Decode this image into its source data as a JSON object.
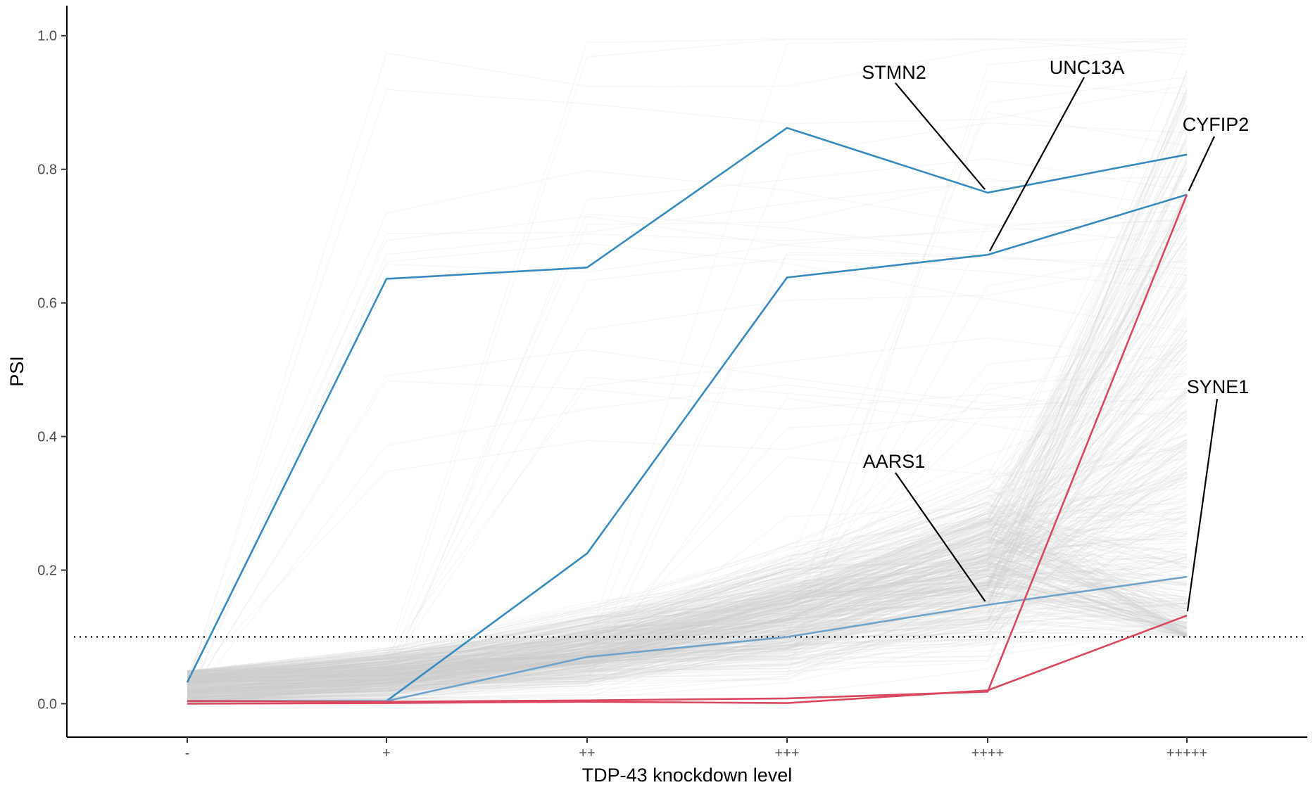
{
  "chart_data": {
    "type": "line",
    "title": "",
    "xlabel": "TDP-43 knockdown level",
    "ylabel": "PSI",
    "categories": [
      "-",
      "+",
      "++",
      "+++",
      "++++",
      "+++++"
    ],
    "y_ticks": [
      0.0,
      0.2,
      0.4,
      0.6,
      0.8,
      1.0
    ],
    "y_tick_labels": [
      "0.0",
      "0.2",
      "0.4",
      "0.6",
      "0.8",
      "1.0"
    ],
    "ylim": [
      -0.05,
      1.045
    ],
    "threshold": 0.1,
    "threshold_style": "dotted",
    "grid": false,
    "legend": "none",
    "background_colors": {
      "line": "#cccccc",
      "highlight_up": "#3a8bbd",
      "highlight_down": "#d9485f"
    },
    "highlighted_series": [
      {
        "name": "STMN2",
        "color": "#3a8bbd",
        "values": [
          0.032,
          0.636,
          0.653,
          0.862,
          0.765,
          0.822
        ]
      },
      {
        "name": "UNC13A",
        "color": "#3a8bbd",
        "values": [
          0.004,
          0.004,
          0.225,
          0.638,
          0.672,
          0.762
        ]
      },
      {
        "name": "AARS1",
        "color": "#6fa3c9",
        "values": [
          0.004,
          0.004,
          0.07,
          0.1,
          0.148,
          0.19
        ]
      },
      {
        "name": "CYFIP2",
        "color": "#d9485f",
        "values": [
          0.004,
          0.003,
          0.005,
          0.008,
          0.018,
          0.762
        ]
      },
      {
        "name": "SYNE1",
        "color": "#d9485f",
        "values": [
          0.0,
          0.001,
          0.003,
          0.001,
          0.02,
          0.132
        ]
      }
    ],
    "annotations": [
      {
        "text": "STMN2",
        "series": "STMN2",
        "point": 4
      },
      {
        "text": "UNC13A",
        "series": "UNC13A",
        "point": 4
      },
      {
        "text": "CYFIP2",
        "series": "CYFIP2",
        "point": 5
      },
      {
        "text": "AARS1",
        "series": "AARS1",
        "point": 4
      },
      {
        "text": "SYNE1",
        "series": "SYNE1",
        "point": 5
      }
    ]
  }
}
